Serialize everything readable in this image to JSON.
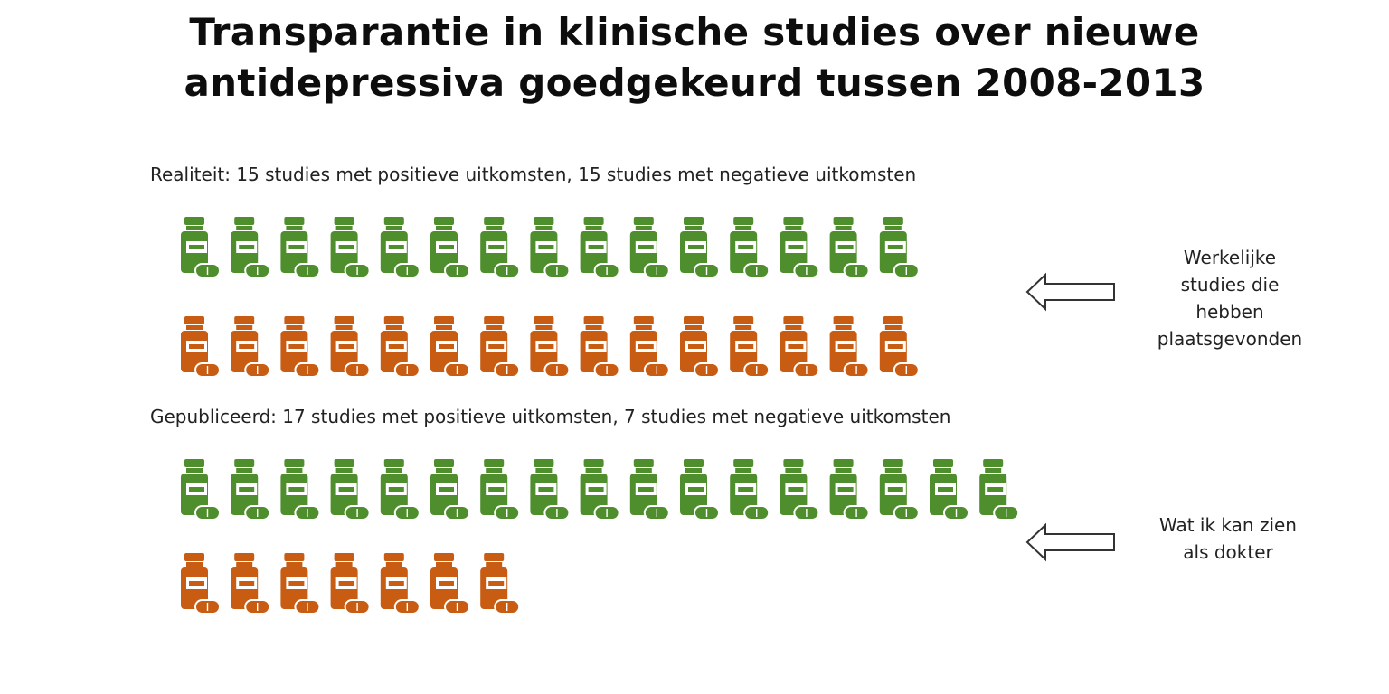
{
  "title_line1": "Transparantie in klinische studies over nieuwe",
  "title_line2": "antidepressiva goedgekeurd tussen 2008-2013",
  "colors": {
    "positive": "#4f8e2c",
    "negative": "#c85c12",
    "arrow_stroke": "#333333"
  },
  "icon_name": "medicine-bottle-icon",
  "chart_data": {
    "type": "pictograph",
    "title": "Transparantie in klinische studies over nieuwe antidepressiva goedgekeurd tussen 2008-2013",
    "groups": [
      {
        "label": "Realiteit: 15 studies met positieve uitkomsten, 15 studies met negatieve uitkomsten",
        "annotation": [
          "Werkelijke",
          "studies die",
          "hebben",
          "plaatsgevonden"
        ],
        "series": [
          {
            "outcome": "positief",
            "count": 15
          },
          {
            "outcome": "negatief",
            "count": 15
          }
        ]
      },
      {
        "label": "Gepubliceerd: 17 studies met positieve uitkomsten, 7 studies met negatieve uitkomsten",
        "annotation": [
          "Wat ik kan zien",
          "als dokter"
        ],
        "series": [
          {
            "outcome": "positief",
            "count": 17
          },
          {
            "outcome": "negatief",
            "count": 7
          }
        ]
      }
    ]
  }
}
